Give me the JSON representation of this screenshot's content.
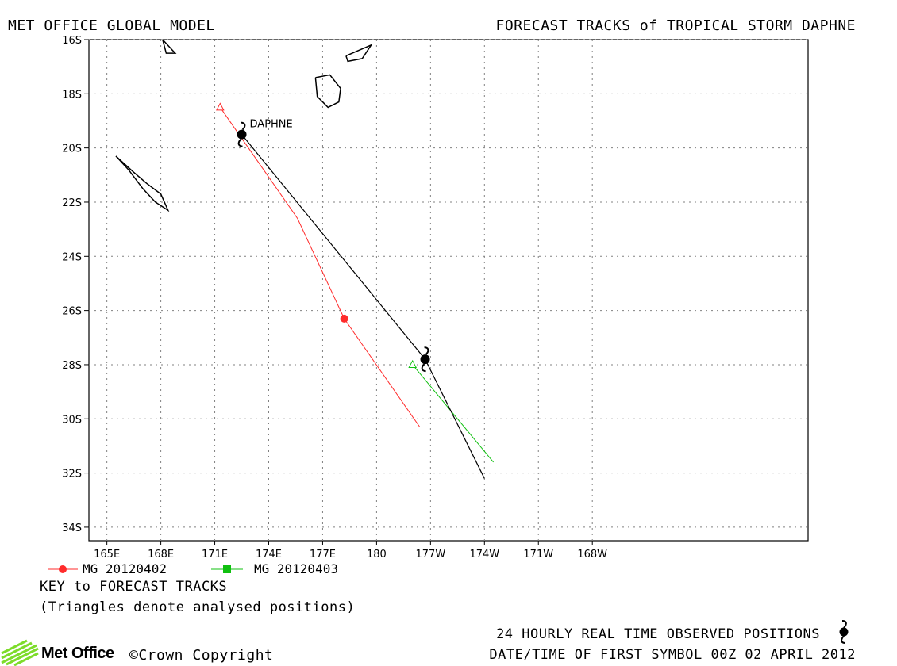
{
  "header": {
    "left": "MET OFFICE GLOBAL MODEL",
    "right": "FORECAST TRACKS of TROPICAL STORM DAPHNE"
  },
  "map": {
    "lat_ticks": [
      "16S",
      "18S",
      "20S",
      "22S",
      "24S",
      "26S",
      "28S",
      "30S",
      "32S",
      "34S"
    ],
    "lon_ticks": [
      "165E",
      "168E",
      "171E",
      "174E",
      "177E",
      "180",
      "177W",
      "174W",
      "171W",
      "168W"
    ],
    "storm_label": "DAPHNE"
  },
  "chart_data": {
    "type": "map",
    "xlim": [
      164,
      204
    ],
    "ylim": [
      -34.5,
      -16
    ],
    "x_units": "degrees east (180 = dateline)",
    "grid": true,
    "observed": {
      "name": "24 HOURLY REAL TIME OBSERVED POSITIONS",
      "points": [
        [
          172.5,
          -19.5
        ],
        [
          182.7,
          -27.8
        ]
      ],
      "track": [
        [
          172.5,
          -19.5
        ],
        [
          182.7,
          -27.8
        ],
        [
          186.0,
          -32.2
        ]
      ],
      "color": "#000000"
    },
    "series": [
      {
        "name": "MG 20120402",
        "color": "#ff2b2b",
        "analysis": [
          171.3,
          -18.5
        ],
        "forecast": [
          [
            171.3,
            -18.5
          ],
          [
            175.6,
            -22.6
          ],
          [
            178.2,
            -26.3
          ],
          [
            182.4,
            -30.3
          ]
        ],
        "marker": "circle",
        "marker_points": [
          [
            178.2,
            -26.3
          ]
        ]
      },
      {
        "name": "MG 20120403",
        "color": "#10c010",
        "analysis": [
          182.0,
          -28.0
        ],
        "forecast": [
          [
            182.0,
            -28.0
          ],
          [
            186.5,
            -31.6
          ]
        ],
        "marker": "square",
        "marker_points": []
      }
    ],
    "coastlines": [
      [
        [
          165.5,
          -20.3
        ],
        [
          166.2,
          -20.8
        ],
        [
          167.0,
          -21.5
        ],
        [
          167.7,
          -22.0
        ],
        [
          168.4,
          -22.3
        ],
        [
          168.0,
          -21.7
        ],
        [
          167.2,
          -21.3
        ],
        [
          166.5,
          -20.9
        ],
        [
          165.5,
          -20.3
        ]
      ],
      [
        [
          168.1,
          -16.0
        ],
        [
          168.3,
          -16.5
        ],
        [
          168.8,
          -16.5
        ],
        [
          168.1,
          -16.0
        ]
      ],
      [
        [
          176.6,
          -17.4
        ],
        [
          177.4,
          -17.3
        ],
        [
          178.0,
          -17.8
        ],
        [
          177.9,
          -18.3
        ],
        [
          177.3,
          -18.5
        ],
        [
          176.7,
          -18.1
        ],
        [
          176.6,
          -17.4
        ]
      ],
      [
        [
          178.3,
          -16.6
        ],
        [
          179.7,
          -16.2
        ],
        [
          179.2,
          -16.7
        ],
        [
          178.4,
          -16.8
        ],
        [
          178.3,
          -16.6
        ]
      ]
    ]
  },
  "legend": {
    "item1": "MG 20120402",
    "item2": "MG 20120403",
    "key_title": "KEY to FORECAST TRACKS",
    "key_note": "(Triangles denote analysed positions)"
  },
  "footer": {
    "obs_label": "24 HOURLY REAL TIME OBSERVED POSITIONS",
    "first_symbol": "DATE/TIME OF FIRST SYMBOL 00Z 02 APRIL 2012",
    "logo_text": "Met Office",
    "copyright": "©Crown Copyright"
  }
}
